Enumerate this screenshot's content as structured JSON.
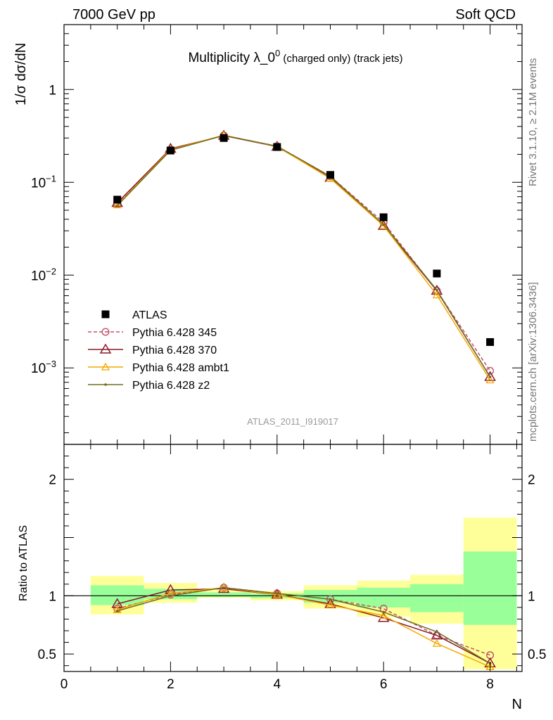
{
  "header": {
    "left": "7000 GeV pp",
    "right": "Soft QCD"
  },
  "side_labels": {
    "rivet": "Rivet 3.1.10, ≥ 2.1M events",
    "mcplots": "mcplots.cern.ch [arXiv:1306.3436]"
  },
  "chart_data": [
    {
      "type": "scatter",
      "title_main": "Multiplicity λ_0",
      "title_sup": "0",
      "title_small": " (charged only) (track jets)",
      "watermark": "ATLAS_2011_I919017",
      "ylabel": "1/σ dσ/dN",
      "xlabel": "",
      "xlim": [
        0,
        8.6
      ],
      "ylim": [
        0.00015,
        5
      ],
      "yscale": "log",
      "y_ticks": [
        {
          "v": 0.001,
          "base": "10",
          "exp": "−3"
        },
        {
          "v": 0.01,
          "base": "10",
          "exp": "−2"
        },
        {
          "v": 0.1,
          "base": "10",
          "exp": "−1"
        },
        {
          "v": 1,
          "base": "1",
          "exp": ""
        }
      ],
      "legend_position": "lower-left",
      "series": [
        {
          "name": "ATLAS",
          "color": "#000000",
          "marker": "square",
          "line": "none",
          "x": [
            1,
            2,
            3,
            4,
            5,
            6,
            7,
            8
          ],
          "y": [
            0.065,
            0.22,
            0.3,
            0.24,
            0.12,
            0.042,
            0.0104,
            0.0019
          ]
        },
        {
          "name": "Pythia 6.428 345",
          "color": "#c0506a",
          "marker": "circle",
          "line": "dashed",
          "x": [
            1,
            2,
            3,
            4,
            5,
            6,
            7,
            8
          ],
          "y": [
            0.058,
            0.222,
            0.32,
            0.245,
            0.116,
            0.037,
            0.0068,
            0.00093
          ]
        },
        {
          "name": "Pythia 6.428 370",
          "color": "#8b1a2b",
          "marker": "triangle",
          "line": "solid",
          "x": [
            1,
            2,
            3,
            4,
            5,
            6,
            7,
            8
          ],
          "y": [
            0.06,
            0.23,
            0.318,
            0.242,
            0.112,
            0.034,
            0.0068,
            0.0008
          ]
        },
        {
          "name": "Pythia 6.428 ambt1",
          "color": "#f5a800",
          "marker": "triangle-small",
          "line": "solid",
          "x": [
            1,
            2,
            3,
            4,
            5,
            6,
            7,
            8
          ],
          "y": [
            0.057,
            0.225,
            0.322,
            0.243,
            0.11,
            0.034,
            0.0061,
            0.00074
          ]
        },
        {
          "name": "Pythia 6.428 z2",
          "color": "#6e6e1e",
          "marker": "dot",
          "line": "solid",
          "x": [
            1,
            2,
            3,
            4,
            5,
            6,
            7,
            8
          ],
          "y": [
            0.056,
            0.221,
            0.32,
            0.245,
            0.116,
            0.035,
            0.0069,
            0.0008
          ]
        }
      ]
    },
    {
      "type": "scatter",
      "ylabel": "Ratio to ATLAS",
      "xlabel": "N",
      "xlim": [
        0,
        8.6
      ],
      "ylim": [
        0.35,
        2.3
      ],
      "y_ticks": [
        0.5,
        1,
        2
      ],
      "x_ticks": [
        0,
        2,
        4,
        6,
        8
      ],
      "bands": {
        "x_edges": [
          0.5,
          1.5,
          2.5,
          3.5,
          4.5,
          5.5,
          6.5,
          7.5,
          8.5
        ],
        "yellow": [
          [
            0.84,
            1.17
          ],
          [
            0.94,
            1.11
          ],
          [
            0.98,
            1.05
          ],
          [
            0.96,
            1.04
          ],
          [
            0.89,
            1.09
          ],
          [
            0.82,
            1.13
          ],
          [
            0.76,
            1.18
          ],
          [
            0.37,
            1.67
          ]
        ],
        "green": [
          [
            0.92,
            1.09
          ],
          [
            0.97,
            1.06
          ],
          [
            0.99,
            1.03
          ],
          [
            0.98,
            1.02
          ],
          [
            0.94,
            1.05
          ],
          [
            0.9,
            1.07
          ],
          [
            0.86,
            1.1
          ],
          [
            0.75,
            1.38
          ]
        ]
      },
      "series": [
        {
          "name": "Pythia 6.428 345",
          "color": "#c0506a",
          "marker": "circle",
          "line": "dashed",
          "x": [
            1,
            2,
            3,
            4,
            5,
            6,
            7,
            8
          ],
          "y": [
            0.89,
            1.01,
            1.07,
            1.02,
            0.97,
            0.89,
            0.66,
            0.49
          ]
        },
        {
          "name": "Pythia 6.428 370",
          "color": "#8b1a2b",
          "marker": "triangle",
          "line": "solid",
          "x": [
            1,
            2,
            3,
            4,
            5,
            6,
            7,
            8
          ],
          "y": [
            0.93,
            1.05,
            1.06,
            1.01,
            0.93,
            0.81,
            0.66,
            0.42
          ]
        },
        {
          "name": "Pythia 6.428 ambt1",
          "color": "#f5a800",
          "marker": "triangle-small",
          "line": "solid",
          "x": [
            1,
            2,
            3,
            4,
            5,
            6,
            7,
            8
          ],
          "y": [
            0.88,
            1.02,
            1.07,
            1.01,
            0.92,
            0.83,
            0.59,
            0.39
          ]
        },
        {
          "name": "Pythia 6.428 z2",
          "color": "#6e6e1e",
          "marker": "dot",
          "line": "solid",
          "x": [
            1,
            2,
            3,
            4,
            5,
            6,
            7,
            8
          ],
          "y": [
            0.87,
            1.0,
            1.07,
            1.02,
            0.97,
            0.86,
            0.69,
            0.42
          ]
        }
      ]
    }
  ]
}
